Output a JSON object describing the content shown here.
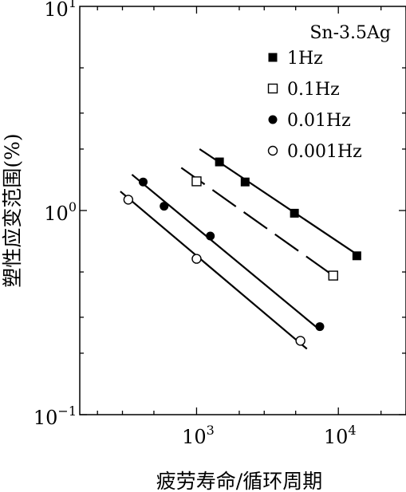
{
  "chart_data": {
    "type": "scatter",
    "scale": "log-log",
    "title": "Sn-3.5Ag",
    "xlabel": "疲劳寿命/循环周期",
    "ylabel": "塑性应变范围(%)",
    "xlim": [
      150,
      30000
    ],
    "ylim": [
      0.1,
      10
    ],
    "x_ticks": [
      {
        "value": 1000,
        "base": "10",
        "exp": "3"
      },
      {
        "value": 10000,
        "base": "10",
        "exp": "4"
      }
    ],
    "y_ticks": [
      {
        "value": 0.1,
        "base": "10",
        "exp": "−1"
      },
      {
        "value": 1,
        "base": "10",
        "exp": "0"
      },
      {
        "value": 10,
        "base": "10",
        "exp": "1"
      }
    ],
    "legend_position": "top-right",
    "series": [
      {
        "name": "1Hz",
        "marker": "filled-square",
        "points": [
          [
            1450,
            1.73
          ],
          [
            2200,
            1.38
          ],
          [
            4900,
            0.97
          ],
          [
            13500,
            0.6
          ]
        ],
        "fit": [
          [
            1050,
            2.0
          ],
          [
            14000,
            0.6
          ],
          "solid"
        ]
      },
      {
        "name": "0.1Hz",
        "marker": "open-square",
        "points": [
          [
            1000,
            1.39
          ],
          [
            9200,
            0.48
          ]
        ],
        "fit": [
          [
            780,
            1.62
          ],
          [
            9200,
            0.48
          ],
          "dashed"
        ]
      },
      {
        "name": "0.01Hz",
        "marker": "filled-circle",
        "points": [
          [
            420,
            1.38
          ],
          [
            590,
            1.05
          ],
          [
            1250,
            0.75
          ],
          [
            7400,
            0.27
          ]
        ],
        "fit": [
          [
            350,
            1.5
          ],
          [
            7400,
            0.26
          ],
          "solid"
        ]
      },
      {
        "name": "0.001Hz",
        "marker": "open-circle",
        "points": [
          [
            330,
            1.13
          ],
          [
            1000,
            0.58
          ],
          [
            5400,
            0.23
          ]
        ],
        "fit": [
          [
            290,
            1.24
          ],
          [
            6000,
            0.21
          ],
          "solid"
        ]
      }
    ]
  }
}
